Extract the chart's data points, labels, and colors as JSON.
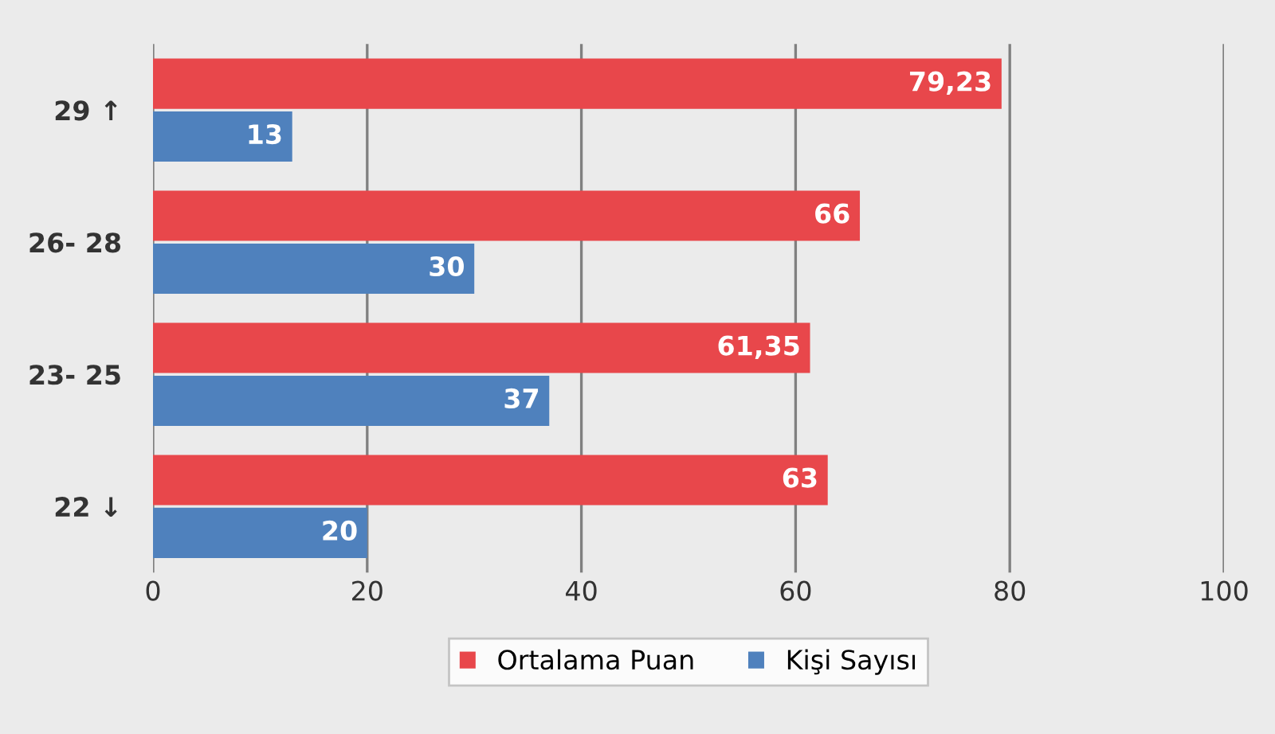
{
  "chart_data": {
    "type": "bar",
    "orientation": "horizontal",
    "categories": [
      "29 ↑",
      "26- 28",
      "23- 25",
      "22 ↓"
    ],
    "series": [
      {
        "name": "Ortalama Puan",
        "color": "#e8474b",
        "values": [
          79.23,
          66,
          61.35,
          63
        ],
        "value_labels": [
          "79,23",
          "66",
          "61,35",
          "63"
        ]
      },
      {
        "name": "Kişi Sayısı",
        "color": "#4f81bd",
        "values": [
          13,
          30,
          37,
          20
        ],
        "value_labels": [
          "13",
          "30",
          "37",
          "20"
        ]
      }
    ],
    "xlim": [
      0,
      100
    ],
    "xticks": [
      0,
      20,
      40,
      60,
      80,
      100
    ],
    "grid": "x",
    "legend": "bottom"
  }
}
